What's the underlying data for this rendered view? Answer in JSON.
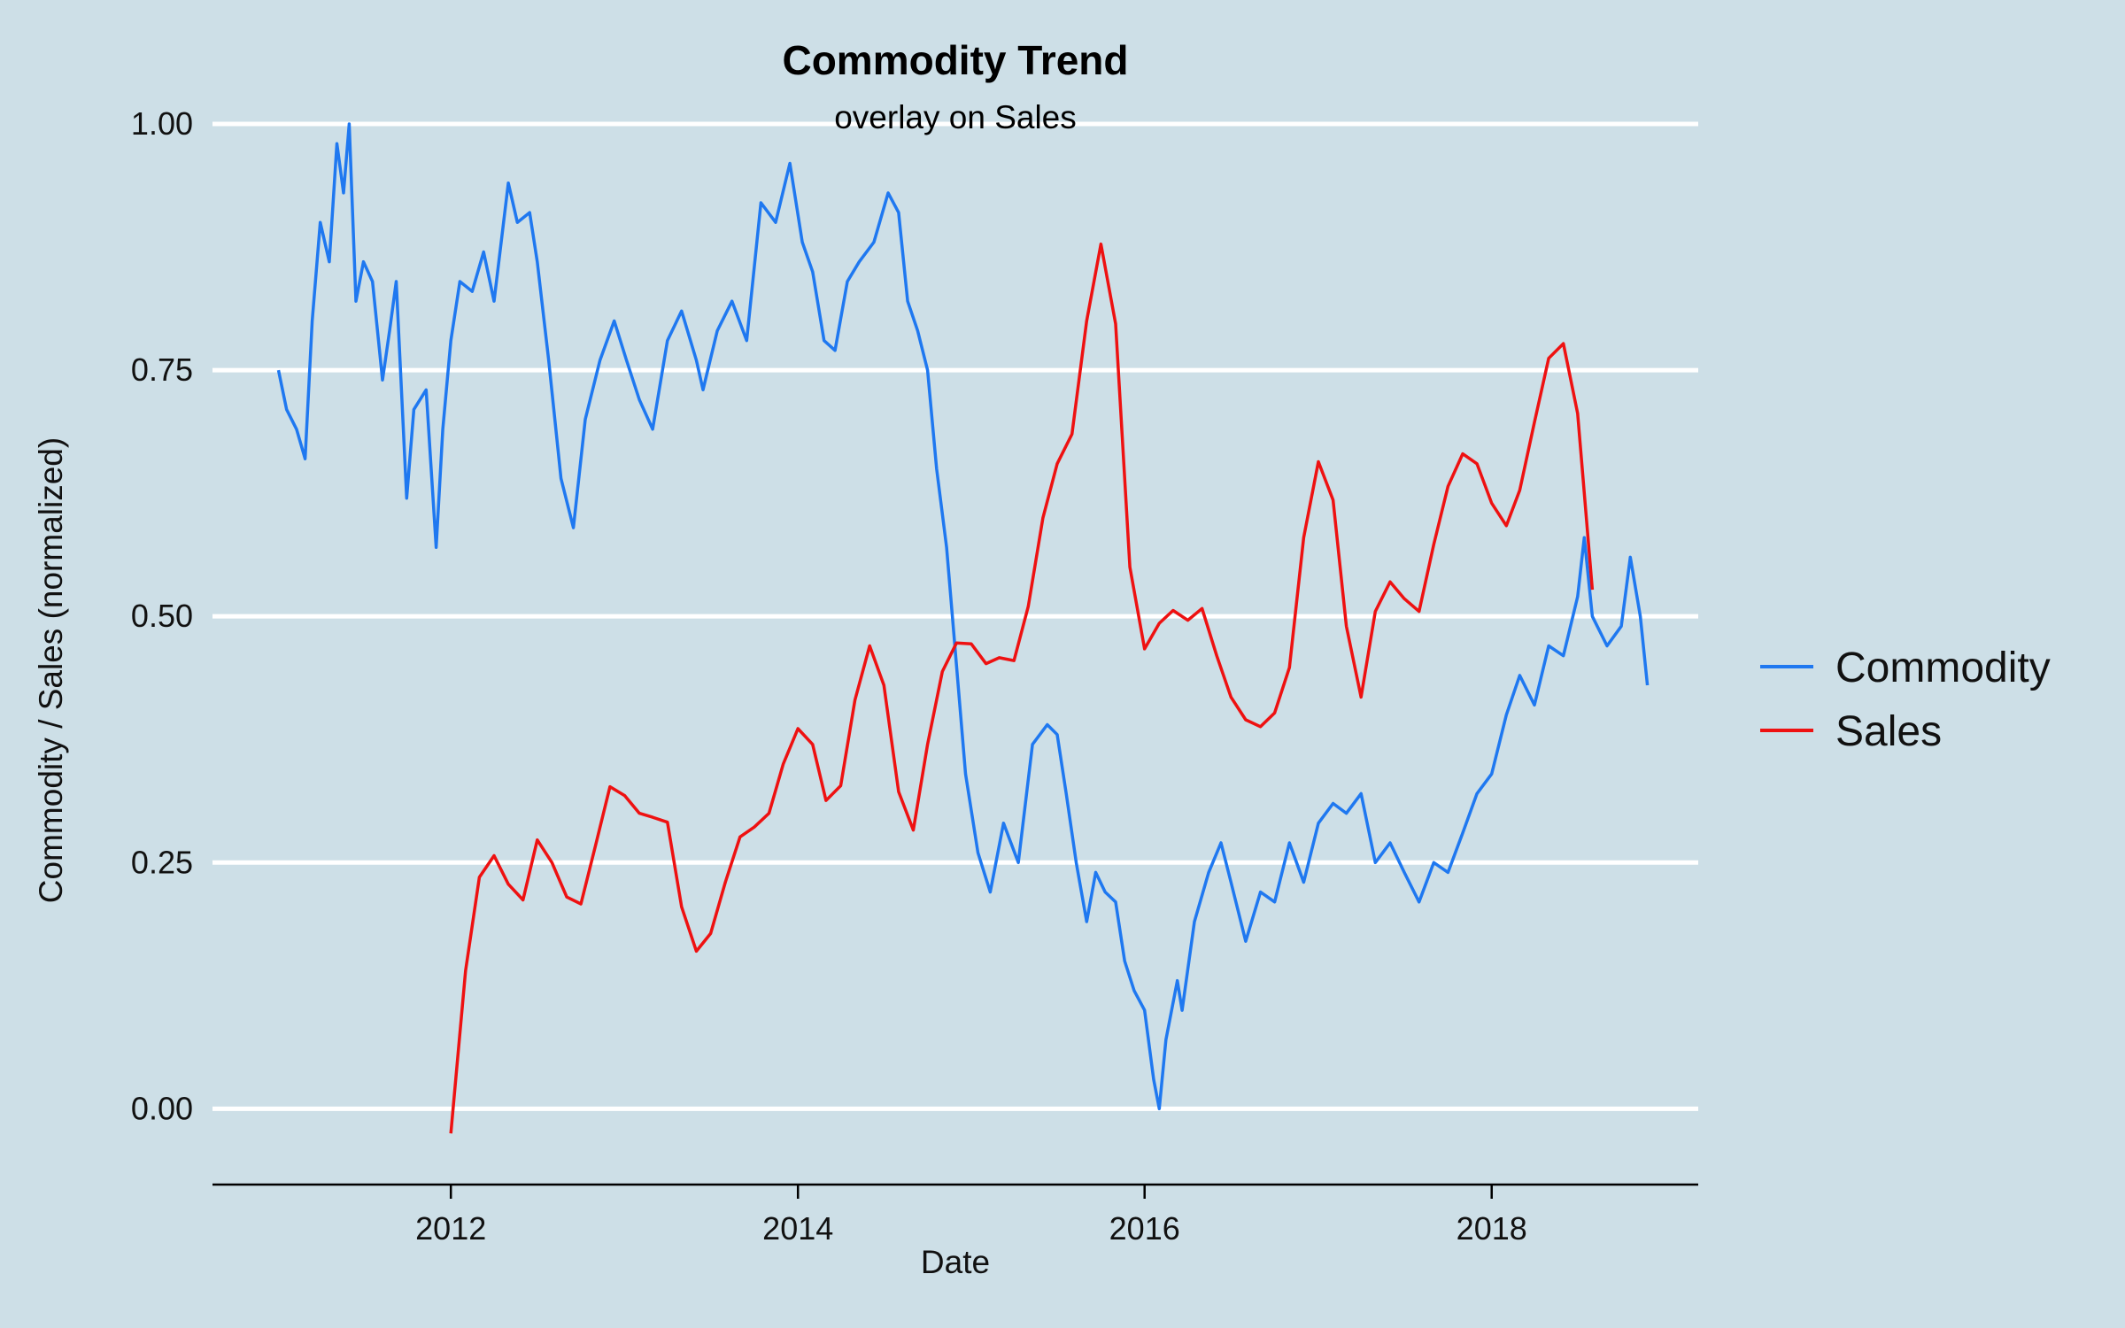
{
  "chart_data": {
    "type": "line",
    "title": "Commodity Trend",
    "subtitle": "overlay on Sales",
    "xlabel": "Date",
    "ylabel": "Commodity / Sales (normalized)",
    "xlim": [
      "2010-08-17",
      "2019-03-12"
    ],
    "ylim": [
      -0.077,
      1.0
    ],
    "x_ticks": [
      {
        "value": "2012-01-01",
        "label": "2012"
      },
      {
        "value": "2014-01-01",
        "label": "2014"
      },
      {
        "value": "2016-01-01",
        "label": "2016"
      },
      {
        "value": "2018-01-01",
        "label": "2018"
      }
    ],
    "y_ticks": [
      {
        "value": 0.0,
        "label": "0.00"
      },
      {
        "value": 0.25,
        "label": "0.25"
      },
      {
        "value": 0.5,
        "label": "0.50"
      },
      {
        "value": 0.75,
        "label": "0.75"
      },
      {
        "value": 1.0,
        "label": "1.00"
      }
    ],
    "grid": "horizontal",
    "legend_position": "right",
    "colors": {
      "background": "#cddfe7",
      "grid": "#ffffff",
      "Commodity": "#1f78f0",
      "Sales": "#ee1111"
    },
    "series": [
      {
        "name": "Commodity",
        "points": [
          [
            "2011-01-03",
            0.75
          ],
          [
            "2011-01-20",
            0.71
          ],
          [
            "2011-02-10",
            0.69
          ],
          [
            "2011-02-28",
            0.66
          ],
          [
            "2011-03-15",
            0.8
          ],
          [
            "2011-04-01",
            0.9
          ],
          [
            "2011-04-20",
            0.86
          ],
          [
            "2011-05-06",
            0.98
          ],
          [
            "2011-05-20",
            0.93
          ],
          [
            "2011-06-01",
            1.0
          ],
          [
            "2011-06-15",
            0.82
          ],
          [
            "2011-07-01",
            0.86
          ],
          [
            "2011-07-20",
            0.84
          ],
          [
            "2011-08-10",
            0.74
          ],
          [
            "2011-08-25",
            0.79
          ],
          [
            "2011-09-08",
            0.84
          ],
          [
            "2011-09-30",
            0.62
          ],
          [
            "2011-10-15",
            0.71
          ],
          [
            "2011-11-10",
            0.73
          ],
          [
            "2011-12-01",
            0.57
          ],
          [
            "2011-12-15",
            0.69
          ],
          [
            "2012-01-01",
            0.78
          ],
          [
            "2012-01-20",
            0.84
          ],
          [
            "2012-02-15",
            0.83
          ],
          [
            "2012-03-10",
            0.87
          ],
          [
            "2012-04-01",
            0.82
          ],
          [
            "2012-05-01",
            0.94
          ],
          [
            "2012-05-20",
            0.9
          ],
          [
            "2012-06-15",
            0.91
          ],
          [
            "2012-07-01",
            0.86
          ],
          [
            "2012-07-25",
            0.76
          ],
          [
            "2012-08-20",
            0.64
          ],
          [
            "2012-09-15",
            0.59
          ],
          [
            "2012-10-10",
            0.7
          ],
          [
            "2012-11-10",
            0.76
          ],
          [
            "2012-12-10",
            0.8
          ],
          [
            "2013-01-05",
            0.76
          ],
          [
            "2013-02-01",
            0.72
          ],
          [
            "2013-03-01",
            0.69
          ],
          [
            "2013-04-01",
            0.78
          ],
          [
            "2013-05-01",
            0.81
          ],
          [
            "2013-06-01",
            0.76
          ],
          [
            "2013-06-15",
            0.73
          ],
          [
            "2013-07-15",
            0.79
          ],
          [
            "2013-08-15",
            0.82
          ],
          [
            "2013-09-15",
            0.78
          ],
          [
            "2013-10-15",
            0.92
          ],
          [
            "2013-11-15",
            0.9
          ],
          [
            "2013-12-15",
            0.96
          ],
          [
            "2014-01-10",
            0.88
          ],
          [
            "2014-02-01",
            0.85
          ],
          [
            "2014-02-25",
            0.78
          ],
          [
            "2014-03-20",
            0.77
          ],
          [
            "2014-04-15",
            0.84
          ],
          [
            "2014-05-10",
            0.86
          ],
          [
            "2014-06-10",
            0.88
          ],
          [
            "2014-07-10",
            0.93
          ],
          [
            "2014-08-01",
            0.91
          ],
          [
            "2014-08-20",
            0.82
          ],
          [
            "2014-09-10",
            0.79
          ],
          [
            "2014-10-01",
            0.75
          ],
          [
            "2014-10-20",
            0.65
          ],
          [
            "2014-11-10",
            0.57
          ],
          [
            "2014-12-01",
            0.45
          ],
          [
            "2014-12-20",
            0.34
          ],
          [
            "2015-01-15",
            0.26
          ],
          [
            "2015-02-10",
            0.22
          ],
          [
            "2015-03-10",
            0.29
          ],
          [
            "2015-04-10",
            0.25
          ],
          [
            "2015-05-10",
            0.37
          ],
          [
            "2015-06-10",
            0.39
          ],
          [
            "2015-07-01",
            0.38
          ],
          [
            "2015-07-20",
            0.32
          ],
          [
            "2015-08-10",
            0.25
          ],
          [
            "2015-09-01",
            0.19
          ],
          [
            "2015-09-20",
            0.24
          ],
          [
            "2015-10-10",
            0.22
          ],
          [
            "2015-11-01",
            0.21
          ],
          [
            "2015-11-20",
            0.15
          ],
          [
            "2015-12-10",
            0.12
          ],
          [
            "2016-01-01",
            0.1
          ],
          [
            "2016-01-20",
            0.03
          ],
          [
            "2016-02-01",
            0.0
          ],
          [
            "2016-02-15",
            0.07
          ],
          [
            "2016-03-10",
            0.13
          ],
          [
            "2016-03-20",
            0.1
          ],
          [
            "2016-04-15",
            0.19
          ],
          [
            "2016-05-15",
            0.24
          ],
          [
            "2016-06-10",
            0.27
          ],
          [
            "2016-07-01",
            0.23
          ],
          [
            "2016-08-01",
            0.17
          ],
          [
            "2016-09-01",
            0.22
          ],
          [
            "2016-10-01",
            0.21
          ],
          [
            "2016-11-01",
            0.27
          ],
          [
            "2016-12-01",
            0.23
          ],
          [
            "2017-01-01",
            0.29
          ],
          [
            "2017-02-01",
            0.31
          ],
          [
            "2017-03-01",
            0.3
          ],
          [
            "2017-04-01",
            0.32
          ],
          [
            "2017-05-01",
            0.25
          ],
          [
            "2017-06-01",
            0.27
          ],
          [
            "2017-07-01",
            0.24
          ],
          [
            "2017-08-01",
            0.21
          ],
          [
            "2017-09-01",
            0.25
          ],
          [
            "2017-10-01",
            0.24
          ],
          [
            "2017-11-01",
            0.28
          ],
          [
            "2017-12-01",
            0.32
          ],
          [
            "2018-01-01",
            0.34
          ],
          [
            "2018-02-01",
            0.4
          ],
          [
            "2018-03-01",
            0.44
          ],
          [
            "2018-04-01",
            0.41
          ],
          [
            "2018-05-01",
            0.47
          ],
          [
            "2018-06-01",
            0.46
          ],
          [
            "2018-07-01",
            0.52
          ],
          [
            "2018-07-15",
            0.58
          ],
          [
            "2018-08-01",
            0.5
          ],
          [
            "2018-09-01",
            0.47
          ],
          [
            "2018-10-01",
            0.49
          ],
          [
            "2018-10-20",
            0.56
          ],
          [
            "2018-11-10",
            0.5
          ],
          [
            "2018-11-25",
            0.43
          ]
        ]
      },
      {
        "name": "Sales",
        "points": [
          [
            "2012-01-01",
            -0.025
          ],
          [
            "2012-02-01",
            0.14
          ],
          [
            "2012-03-01",
            0.235
          ],
          [
            "2012-04-01",
            0.257
          ],
          [
            "2012-05-01",
            0.228
          ],
          [
            "2012-06-01",
            0.212
          ],
          [
            "2012-07-01",
            0.273
          ],
          [
            "2012-08-01",
            0.25
          ],
          [
            "2012-09-01",
            0.215
          ],
          [
            "2012-10-01",
            0.208
          ],
          [
            "2012-11-01",
            0.268
          ],
          [
            "2012-12-01",
            0.327
          ],
          [
            "2013-01-01",
            0.318
          ],
          [
            "2013-02-01",
            0.3
          ],
          [
            "2013-03-01",
            0.296
          ],
          [
            "2013-04-01",
            0.291
          ],
          [
            "2013-05-01",
            0.205
          ],
          [
            "2013-06-01",
            0.16
          ],
          [
            "2013-07-01",
            0.178
          ],
          [
            "2013-08-01",
            0.23
          ],
          [
            "2013-09-01",
            0.276
          ],
          [
            "2013-10-01",
            0.286
          ],
          [
            "2013-11-01",
            0.3
          ],
          [
            "2013-12-01",
            0.35
          ],
          [
            "2014-01-01",
            0.386
          ],
          [
            "2014-02-01",
            0.37
          ],
          [
            "2014-03-01",
            0.313
          ],
          [
            "2014-04-01",
            0.328
          ],
          [
            "2014-05-01",
            0.415
          ],
          [
            "2014-06-01",
            0.47
          ],
          [
            "2014-07-01",
            0.43
          ],
          [
            "2014-08-01",
            0.322
          ],
          [
            "2014-09-01",
            0.283
          ],
          [
            "2014-10-01",
            0.37
          ],
          [
            "2014-11-01",
            0.444
          ],
          [
            "2014-12-01",
            0.473
          ],
          [
            "2015-01-01",
            0.472
          ],
          [
            "2015-02-01",
            0.452
          ],
          [
            "2015-03-01",
            0.458
          ],
          [
            "2015-04-01",
            0.455
          ],
          [
            "2015-05-01",
            0.51
          ],
          [
            "2015-06-01",
            0.6
          ],
          [
            "2015-07-01",
            0.655
          ],
          [
            "2015-08-01",
            0.685
          ],
          [
            "2015-09-01",
            0.8
          ],
          [
            "2015-10-01",
            0.878
          ],
          [
            "2015-11-01",
            0.797
          ],
          [
            "2015-12-01",
            0.55
          ],
          [
            "2016-01-01",
            0.467
          ],
          [
            "2016-02-01",
            0.493
          ],
          [
            "2016-03-01",
            0.506
          ],
          [
            "2016-04-01",
            0.496
          ],
          [
            "2016-05-01",
            0.508
          ],
          [
            "2016-06-01",
            0.46
          ],
          [
            "2016-07-01",
            0.418
          ],
          [
            "2016-08-01",
            0.395
          ],
          [
            "2016-09-01",
            0.388
          ],
          [
            "2016-10-01",
            0.402
          ],
          [
            "2016-11-01",
            0.448
          ],
          [
            "2016-12-01",
            0.58
          ],
          [
            "2017-01-01",
            0.657
          ],
          [
            "2017-02-01",
            0.618
          ],
          [
            "2017-03-01",
            0.49
          ],
          [
            "2017-04-01",
            0.418
          ],
          [
            "2017-05-01",
            0.505
          ],
          [
            "2017-06-01",
            0.535
          ],
          [
            "2017-07-01",
            0.518
          ],
          [
            "2017-08-01",
            0.505
          ],
          [
            "2017-09-01",
            0.573
          ],
          [
            "2017-10-01",
            0.632
          ],
          [
            "2017-11-01",
            0.665
          ],
          [
            "2017-12-01",
            0.655
          ],
          [
            "2018-01-01",
            0.615
          ],
          [
            "2018-02-01",
            0.592
          ],
          [
            "2018-03-01",
            0.628
          ],
          [
            "2018-04-01",
            0.697
          ],
          [
            "2018-05-01",
            0.762
          ],
          [
            "2018-06-01",
            0.777
          ],
          [
            "2018-07-01",
            0.706
          ],
          [
            "2018-08-01",
            0.527
          ]
        ]
      }
    ]
  }
}
